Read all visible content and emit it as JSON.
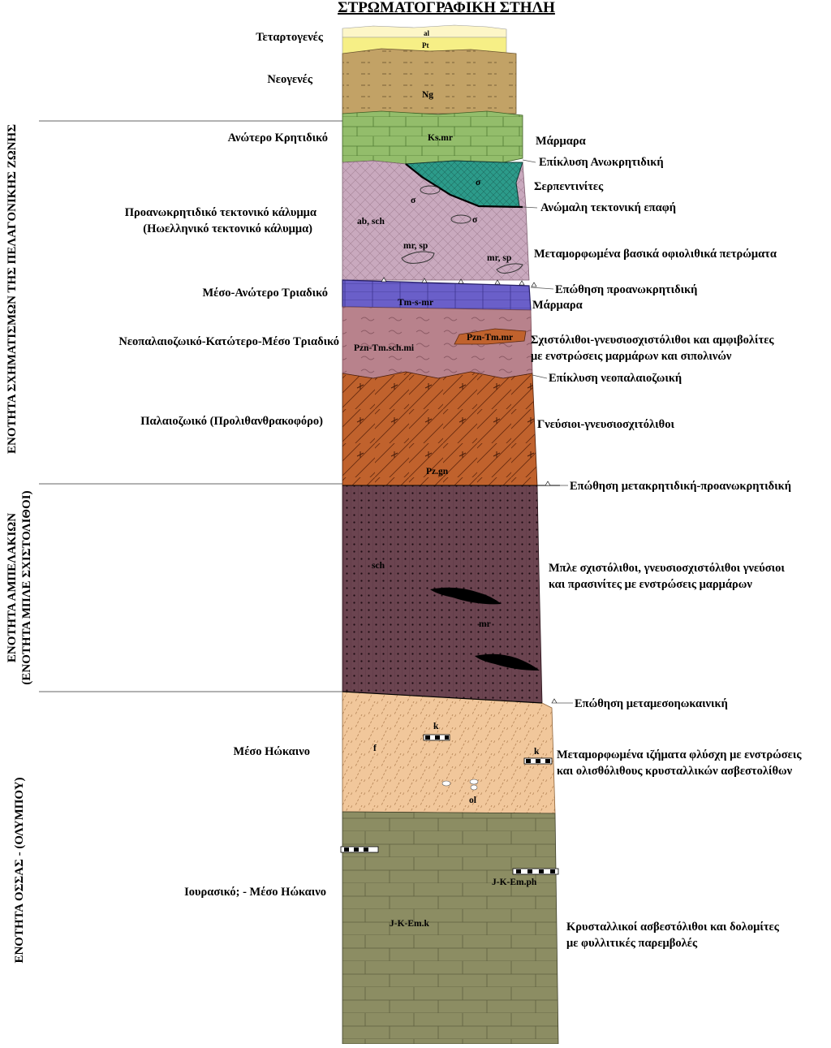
{
  "title": "ΣΤΡΩΜΑΤΟΓΡΑΦΙΚΗ ΣΤΗΛΗ",
  "units": [
    {
      "id": "pelagonian",
      "label": "ΕΝΟΤΗΤΑ ΣΧΗΜΑΤΙΣΜΩΝ ΤΗΣ ΠΕΛΑΓΟΝΙΚΗΣ ΖΩΝΗΣ"
    },
    {
      "id": "ampelakia",
      "label_1": "ΕΝΟΤΗΤΑ ΑΜΠΕΛΑΚΙΩΝ",
      "label_2": "(ΕΝΟΤΗΤΑ ΜΠΛΕ ΣΧΙΣΤΟΛΙΘΟΙ)"
    },
    {
      "id": "ossa",
      "label": "ΕΝΟΤΗΤΑ ΟΣΣΑΣ - (ΟΛΥΜΠΟΥ)"
    }
  ],
  "ages": [
    {
      "id": "quaternary",
      "label": "Τεταρτογενές"
    },
    {
      "id": "neogene",
      "label": "Νεογενές"
    },
    {
      "id": "upper-cretaceous",
      "label": "Ανώτερο Κρητιδικό"
    },
    {
      "id": "nappe",
      "line1": "Προανωκρητιδικό τεκτονικό κάλυμμα",
      "line2": "(Ηωελληνικό τεκτονικό κάλυμμα)"
    },
    {
      "id": "mid-upper-triassic",
      "label": "Μέσο-Ανώτερο Τριαδικό"
    },
    {
      "id": "neopaleozoic-triassic",
      "label": "Νεοπαλαιοζωικό-Κατώτερο-Μέσο Τριαδικό"
    },
    {
      "id": "paleozoic",
      "label": "Παλαιοζωικό (Προλιθανθρακοφόρο)"
    },
    {
      "id": "middle-eocene",
      "label": "Μέσο Ηώκαινο"
    },
    {
      "id": "jurassic-eocene",
      "label": "Ιουρασικό; - Μέσο Ηώκαινο"
    }
  ],
  "descriptions": [
    {
      "id": "marbles-1",
      "line1": "Μάρμαρα"
    },
    {
      "id": "transgression-upper-cretaceous",
      "line1": "Επίκλυση Ανωκρητιδική"
    },
    {
      "id": "serpentinites",
      "line1": "Σερπεντινίτες"
    },
    {
      "id": "irregular-contact",
      "line1": "Ανώμαλη τεκτονική επαφή"
    },
    {
      "id": "ophiolitic-rocks",
      "line1": "Μεταμορφωμένα βασικά οφιολιθικά πετρώματα"
    },
    {
      "id": "thrust-pre-upper-cretaceous",
      "line1": "Επώθηση προανωκρητιδική"
    },
    {
      "id": "marbles-2",
      "line1": "Μάρμαρα"
    },
    {
      "id": "schists-amphibolites",
      "line1": "Σχιστόλιθοι-γνευσιοσχιστόλιθοι και αμφιβολίτες",
      "line2": "με ενστρώσεις μαρμάρων και σιπολινών"
    },
    {
      "id": "transgression-neopaleozoic",
      "line1": "Επίκλυση νεοπαλαιοζωική"
    },
    {
      "id": "gneisses",
      "line1": "Γνεύσιοι-γνευσιοσχιτόλιθοι"
    },
    {
      "id": "thrust-post-cretaceous",
      "line1": "Επώθηση μετακρητιδική-προανωκρητιδική"
    },
    {
      "id": "blueschists",
      "line1": "Μπλε σχιστόλιθοι, γνευσιοσχιστόλιθοι γνεύσιοι",
      "line2": "και πρασινίτες με ενστρώσεις μαρμάρων"
    },
    {
      "id": "thrust-post-mesoeocene",
      "line1": "Επώθηση μεταμεσοηωκαινική"
    },
    {
      "id": "flysch",
      "line1": "Μεταμορφωμένα ιζήματα φλύσχη με ενστρώσεις",
      "line2": "και ολισθόλιθους κρυσταλλικών ασβεστολίθων"
    },
    {
      "id": "limestones",
      "line1": "Κρυσταλλικοί ασβεστόλιθοι και δολομίτες",
      "line2": "με φυλλιτικές παρεμβολές"
    }
  ],
  "codes": {
    "al": "al",
    "pt": "Pt",
    "ng": "Ng",
    "ksmr": "Ks.mr",
    "sigma": "σ",
    "ab_sch": "ab, sch",
    "mr_sp": "mr, sp",
    "tmsmr": "Tm-s-mr",
    "pzn_tm_sch_mi": "Pzn-Tm.sch.mi",
    "pzn_tm_mr": "Pzn-Tm.mr",
    "pzgn": "Pz.gn",
    "sch": "sch",
    "mr": "mr",
    "k": "k",
    "f": "f",
    "ol": "ol",
    "jkem_ph": "J-K-Em.ph",
    "jkem_k": "J-K-Em.k"
  },
  "colors": {
    "quaternary": "#f6ef86",
    "neogene": "#c2a266",
    "upper_cretaceous": "#93bd6b",
    "nappe": "#c9a9be",
    "serpentinite": "#2c9b8a",
    "triassic_marble": "#6a5fc9",
    "schist_pink": "#b8828c",
    "gneiss": "#c0622d",
    "blueschist": "#6b4450",
    "flysch": "#f1c79b",
    "limestone": "#8c8d63"
  }
}
